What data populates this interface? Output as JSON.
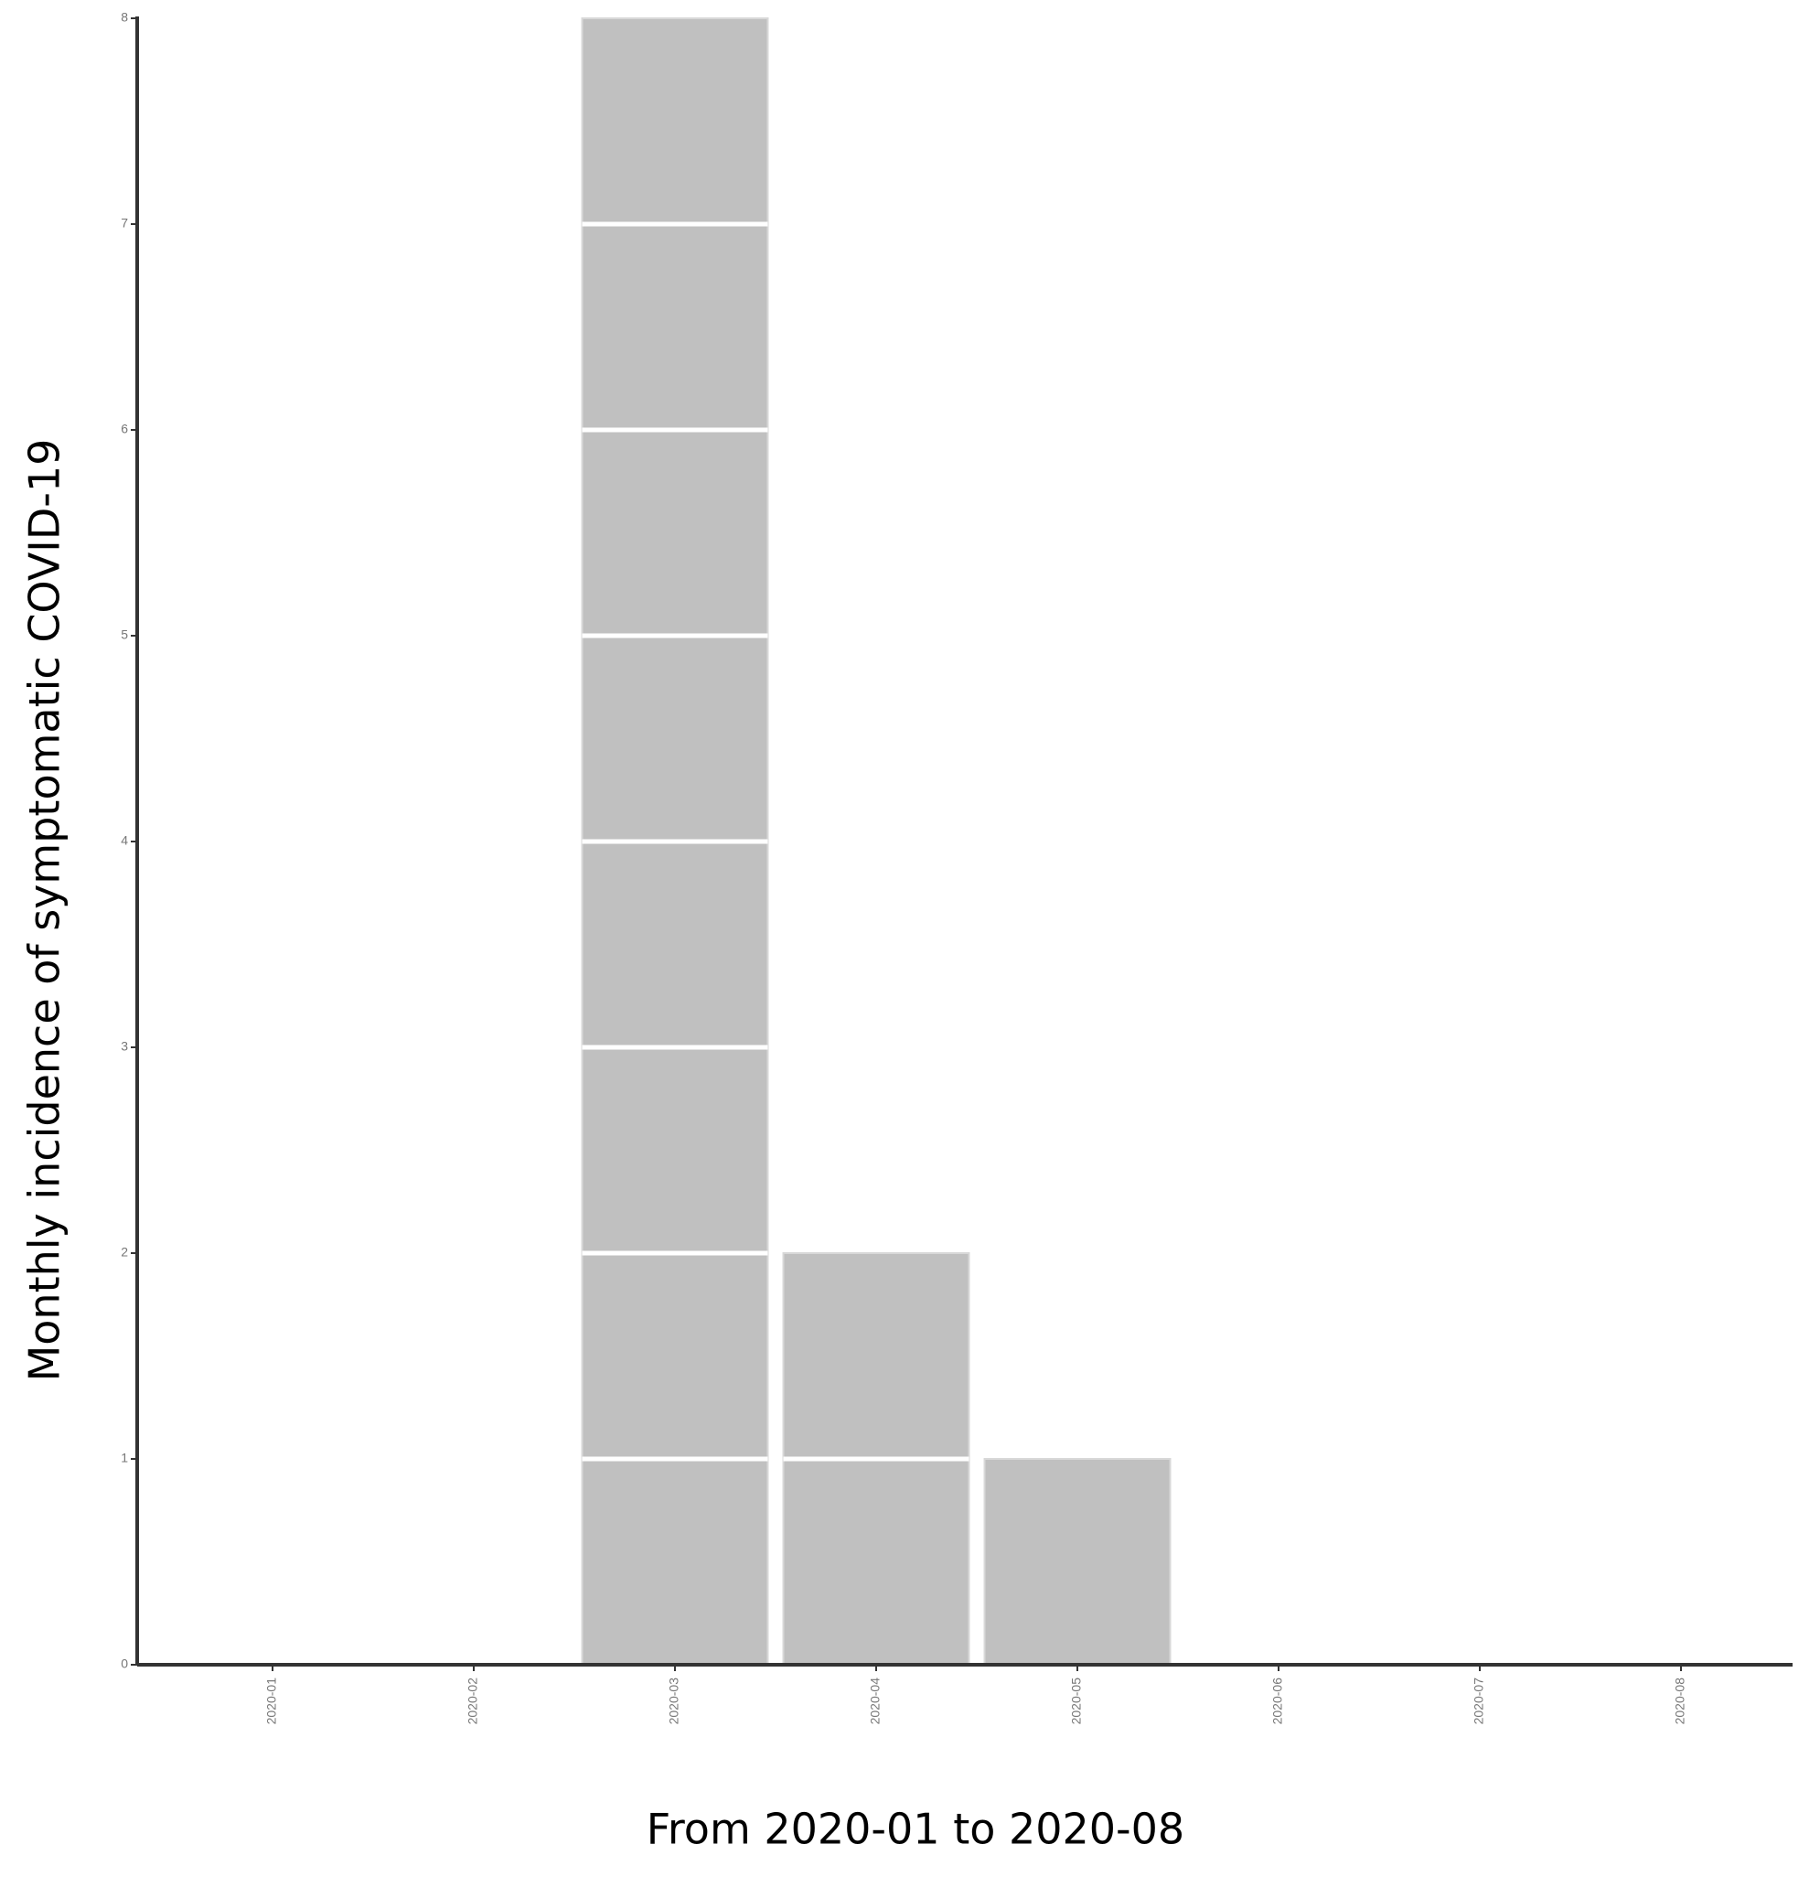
{
  "chart_data": {
    "type": "bar",
    "categories": [
      "2020-01",
      "2020-02",
      "2020-03",
      "2020-04",
      "2020-05",
      "2020-06",
      "2020-07",
      "2020-08"
    ],
    "values": [
      0,
      0,
      8,
      2,
      1,
      0,
      0,
      0
    ],
    "color": "#c0c0c0",
    "ylim": [
      0,
      8
    ],
    "yticks": [
      0,
      1,
      2,
      3,
      4,
      5,
      6,
      7,
      8
    ],
    "y_label": "Monthly incidence of symptomatic COVID-19",
    "x_label": "From 2020-01 to 2020-08"
  }
}
